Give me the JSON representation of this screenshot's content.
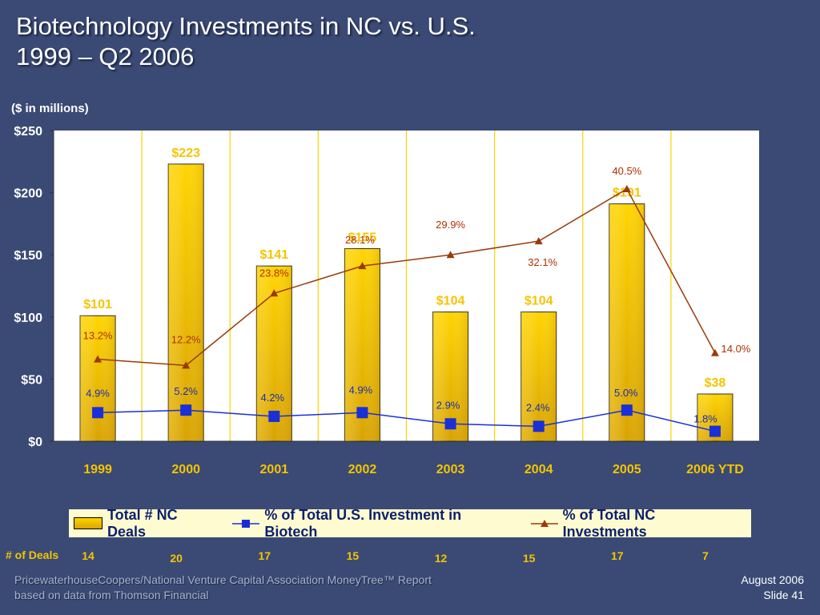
{
  "slide": {
    "title_line1": "Biotechnology Investments in NC vs. U.S.",
    "title_line2": "1999 – Q2 2006",
    "unit_note": "($ in millions)",
    "deals_label": "# of Deals",
    "source_line1": "PricewaterhouseCoopers/National Venture Capital Association MoneyTree™ Report",
    "source_line2": "based on data from Thomson Financial",
    "date": "August 2006",
    "slide_number": "Slide 41"
  },
  "legend": {
    "bars": "Total # NC Deals",
    "us_line": "% of Total U.S. Investment in Biotech",
    "nc_line": "% of Total NC Investments"
  },
  "chart_data": {
    "type": "bar",
    "categories": [
      "1999",
      "2000",
      "2001",
      "2002",
      "2003",
      "2004",
      "2005",
      "2006 YTD"
    ],
    "ylim": [
      0,
      250
    ],
    "y_ticks": [
      {
        "value": 0,
        "label": "$0"
      },
      {
        "value": 50,
        "label": "$50"
      },
      {
        "value": 100,
        "label": "$100"
      },
      {
        "value": 150,
        "label": "$150"
      },
      {
        "value": 200,
        "label": "$200"
      },
      {
        "value": 250,
        "label": "$250"
      }
    ],
    "bars": {
      "values": [
        101,
        223,
        141,
        155,
        104,
        104,
        191,
        38
      ],
      "labels": [
        "$101",
        "$223",
        "$141",
        "$155",
        "$104",
        "$104",
        "$191",
        "$38"
      ]
    },
    "series": [
      {
        "name": "% of Total U.S. Investment in Biotech",
        "values": [
          4.9,
          5.2,
          4.2,
          4.9,
          2.9,
          2.4,
          5.0,
          1.8
        ],
        "labels": [
          "4.9%",
          "5.2%",
          "4.2%",
          "4.9%",
          "2.9%",
          "2.4%",
          "5.0%",
          "1.8%"
        ],
        "plot_positions": [
          23,
          25,
          20,
          23,
          14,
          12,
          25,
          8
        ],
        "color": "#1a2fd8"
      },
      {
        "name": "% of Total NC Investments",
        "values": [
          13.2,
          12.2,
          23.8,
          28.1,
          29.9,
          32.1,
          40.5,
          14.0
        ],
        "labels": [
          "13.2%",
          "12.2%",
          "23.8%",
          "28.1%",
          "29.9%",
          "32.1%",
          "40.5%",
          "14.0%"
        ],
        "plot_positions": [
          66,
          61,
          119,
          141,
          150,
          161,
          203,
          71
        ],
        "color": "#9a3a0a"
      }
    ],
    "deals": [
      14,
      20,
      17,
      15,
      12,
      15,
      17,
      7
    ],
    "grid": false,
    "legend_position": "bottom",
    "colors": {
      "bar": "#f5c400",
      "accent_text": "#f5c400",
      "background": "#3a4a74",
      "plot_bg": "#ffffff"
    }
  }
}
